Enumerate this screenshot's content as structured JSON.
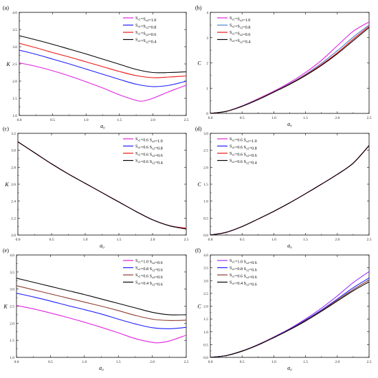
{
  "chart_data": [
    {
      "panel": "(a)",
      "type": "line",
      "xlabel": "a₀",
      "ylabel": "K",
      "xlim": [
        0,
        2.5
      ],
      "ylim": [
        1.0,
        4.0
      ],
      "xticks": [
        "0.0",
        "0.5",
        "1.0",
        "1.5",
        "2.0",
        "2.5"
      ],
      "yticks": [
        "1.0",
        "1.5",
        "2.0",
        "2.5",
        "3.0",
        "3.5",
        "4.0"
      ],
      "legend": "top-right",
      "series": [
        {
          "name": "Sₓ₁=Sₓ₂=1.0",
          "color": "#e020e0",
          "x": [
            0,
            0.25,
            0.5,
            0.75,
            1.0,
            1.25,
            1.5,
            1.75,
            1.85,
            2.0,
            2.25,
            2.5
          ],
          "y": [
            2.53,
            2.43,
            2.3,
            2.15,
            1.98,
            1.8,
            1.6,
            1.44,
            1.42,
            1.5,
            1.7,
            1.88
          ]
        },
        {
          "name": "Sₓ₁=Sₓ₂=0.8",
          "color": "#1a1aff",
          "x": [
            0,
            0.25,
            0.5,
            0.75,
            1.0,
            1.25,
            1.5,
            1.75,
            2.0,
            2.25,
            2.5
          ],
          "y": [
            2.9,
            2.78,
            2.64,
            2.5,
            2.35,
            2.2,
            2.05,
            1.91,
            1.84,
            1.88,
            2.0
          ]
        },
        {
          "name": "Sₓ₁=Sₓ₂=0.6",
          "color": "#ee1111",
          "x": [
            0,
            0.25,
            0.5,
            0.75,
            1.0,
            1.25,
            1.5,
            1.75,
            2.0,
            2.25,
            2.5
          ],
          "y": [
            3.1,
            2.97,
            2.83,
            2.7,
            2.56,
            2.42,
            2.28,
            2.16,
            2.1,
            2.12,
            2.15
          ]
        },
        {
          "name": "Sₓ₁=Sₓ₂=0.4",
          "color": "#000000",
          "x": [
            0,
            0.25,
            0.5,
            0.75,
            1.0,
            1.25,
            1.5,
            1.75,
            2.0,
            2.25,
            2.5
          ],
          "y": [
            3.32,
            3.2,
            3.07,
            2.93,
            2.79,
            2.64,
            2.49,
            2.34,
            2.25,
            2.25,
            2.27
          ]
        }
      ]
    },
    {
      "panel": "(b)",
      "type": "line",
      "xlabel": "a₀",
      "ylabel": "C",
      "xlim": [
        0,
        2.5
      ],
      "ylim": [
        0,
        4
      ],
      "xticks": [
        "0.0",
        "0.5",
        "1.0",
        "1.5",
        "2.0",
        "2.5"
      ],
      "yticks": [
        "0",
        "1",
        "2",
        "3",
        "4"
      ],
      "legend": "top-left",
      "series": [
        {
          "name": "Sₓ₁=Sₓ₂=1.0",
          "color": "#e020e0",
          "x": [
            0,
            0.25,
            0.5,
            0.75,
            1.0,
            1.25,
            1.5,
            1.75,
            2.0,
            2.25,
            2.5
          ],
          "y": [
            0,
            0.08,
            0.3,
            0.58,
            0.88,
            1.22,
            1.62,
            2.1,
            2.68,
            3.25,
            3.62
          ]
        },
        {
          "name": "Sₓ₁=Sₓ₂=0.8",
          "color": "#4a7fd0",
          "x": [
            0,
            0.25,
            0.5,
            0.75,
            1.0,
            1.25,
            1.5,
            1.75,
            2.0,
            2.25,
            2.5
          ],
          "y": [
            0,
            0.08,
            0.29,
            0.56,
            0.86,
            1.18,
            1.55,
            1.98,
            2.48,
            3.02,
            3.5
          ]
        },
        {
          "name": "Sₓ₁=Sₓ₂=0.6",
          "color": "#ee1111",
          "x": [
            0,
            0.25,
            0.5,
            0.75,
            1.0,
            1.25,
            1.5,
            1.75,
            2.0,
            2.25,
            2.5
          ],
          "y": [
            0,
            0.08,
            0.28,
            0.55,
            0.85,
            1.16,
            1.52,
            1.93,
            2.4,
            2.94,
            3.45
          ]
        },
        {
          "name": "Sₓ₁=Sₓ₂=0.4",
          "color": "#000000",
          "x": [
            0,
            0.25,
            0.5,
            0.75,
            1.0,
            1.25,
            1.5,
            1.75,
            2.0,
            2.25,
            2.5
          ],
          "y": [
            0,
            0.08,
            0.28,
            0.54,
            0.84,
            1.15,
            1.5,
            1.9,
            2.36,
            2.88,
            3.4
          ]
        }
      ]
    },
    {
      "panel": "(c)",
      "type": "line",
      "xlabel": "a₀",
      "ylabel": "K",
      "xlim": [
        0,
        2.5
      ],
      "ylim": [
        2.0,
        3.2
      ],
      "xticks": [
        "0.0",
        "0.5",
        "1.0",
        "1.5",
        "2.0",
        "2.5"
      ],
      "yticks": [
        "2.0",
        "2.2",
        "2.4",
        "2.6",
        "2.8",
        "3.0",
        "3.2"
      ],
      "legend": "top-right",
      "series": [
        {
          "name": "Sₓ₁=0.6 Sₓ₂=1.0",
          "color": "#e020e0",
          "x": [
            0,
            0.25,
            0.5,
            0.75,
            1.0,
            1.25,
            1.5,
            1.75,
            2.0,
            2.25,
            2.5
          ],
          "y": [
            3.1,
            2.97,
            2.84,
            2.72,
            2.61,
            2.5,
            2.39,
            2.28,
            2.18,
            2.11,
            2.08
          ]
        },
        {
          "name": "Sₓ₁=0.6 Sₓ₂=0.8",
          "color": "#1a1aff",
          "x": [
            0,
            0.25,
            0.5,
            0.75,
            1.0,
            1.25,
            1.5,
            1.75,
            2.0,
            2.25,
            2.5
          ],
          "y": [
            3.1,
            2.97,
            2.84,
            2.72,
            2.61,
            2.5,
            2.39,
            2.28,
            2.18,
            2.11,
            2.08
          ]
        },
        {
          "name": "Sₓ₁=0.6 Sₓ₂=0.6",
          "color": "#ee1111",
          "x": [
            0,
            0.25,
            0.5,
            0.75,
            1.0,
            1.25,
            1.5,
            1.75,
            2.0,
            2.25,
            2.5
          ],
          "y": [
            3.1,
            2.97,
            2.84,
            2.72,
            2.61,
            2.5,
            2.39,
            2.28,
            2.18,
            2.11,
            2.08
          ]
        },
        {
          "name": "Sₓ₁=0.6 Sₓ₂=0.4",
          "color": "#000000",
          "x": [
            0,
            0.25,
            0.5,
            0.75,
            1.0,
            1.25,
            1.5,
            1.75,
            2.0,
            2.25,
            2.5
          ],
          "y": [
            3.1,
            2.97,
            2.84,
            2.72,
            2.61,
            2.5,
            2.39,
            2.28,
            2.18,
            2.11,
            2.07
          ]
        }
      ]
    },
    {
      "panel": "(d)",
      "type": "line",
      "xlabel": "a₀",
      "ylabel": "C",
      "xlim": [
        0,
        2.5
      ],
      "ylim": [
        0,
        3
      ],
      "xticks": [
        "0.0",
        "0.5",
        "1.0",
        "1.5",
        "2.0",
        "2.5"
      ],
      "yticks": [
        "0.0",
        "0.5",
        "1.0",
        "1.5",
        "2.0",
        "2.5",
        "3.0"
      ],
      "legend": "top-left",
      "series": [
        {
          "name": "Sₓ₁=0.6 Sₓ₂=1.0",
          "color": "#e020e0",
          "x": [
            0,
            0.25,
            0.5,
            0.75,
            1.0,
            1.25,
            1.5,
            1.75,
            2.0,
            2.25,
            2.5
          ],
          "y": [
            0,
            0.08,
            0.25,
            0.47,
            0.7,
            0.95,
            1.22,
            1.5,
            1.79,
            2.12,
            2.64
          ]
        },
        {
          "name": "Sₓ₁=0.6 Sₓ₂=0.8",
          "color": "#1a1aff",
          "x": [
            0,
            0.25,
            0.5,
            0.75,
            1.0,
            1.25,
            1.5,
            1.75,
            2.0,
            2.25,
            2.5
          ],
          "y": [
            0,
            0.08,
            0.25,
            0.47,
            0.7,
            0.95,
            1.22,
            1.5,
            1.79,
            2.12,
            2.64
          ]
        },
        {
          "name": "Sₓ₁=0.6 Sₓ₂=0.6",
          "color": "#ee1111",
          "x": [
            0,
            0.25,
            0.5,
            0.75,
            1.0,
            1.25,
            1.5,
            1.75,
            2.0,
            2.25,
            2.5
          ],
          "y": [
            0,
            0.08,
            0.25,
            0.47,
            0.7,
            0.95,
            1.22,
            1.5,
            1.79,
            2.12,
            2.64
          ]
        },
        {
          "name": "Sₓ₁=0.6 Sₓ₂=0.4",
          "color": "#000000",
          "x": [
            0,
            0.25,
            0.5,
            0.75,
            1.0,
            1.25,
            1.5,
            1.75,
            2.0,
            2.25,
            2.5
          ],
          "y": [
            0,
            0.08,
            0.25,
            0.47,
            0.7,
            0.95,
            1.22,
            1.5,
            1.79,
            2.12,
            2.64
          ]
        }
      ]
    },
    {
      "panel": "(e)",
      "type": "line",
      "xlabel": "a₀",
      "ylabel": "K",
      "xlim": [
        0,
        2.5
      ],
      "ylim": [
        1.0,
        4.0
      ],
      "xticks": [
        "0.0",
        "0.5",
        "1.0",
        "1.5",
        "2.0",
        "2.5"
      ],
      "yticks": [
        "1.0",
        "1.5",
        "2.0",
        "2.5",
        "3.0",
        "3.5",
        "4.0"
      ],
      "legend": "top-right",
      "series": [
        {
          "name": "Sₓ₁=1.0 Sₓ₂=0.6",
          "color": "#e020e0",
          "x": [
            0,
            0.25,
            0.5,
            0.75,
            1.0,
            1.25,
            1.5,
            1.75,
            2.0,
            2.1,
            2.25,
            2.5
          ],
          "y": [
            2.52,
            2.42,
            2.3,
            2.17,
            2.03,
            1.88,
            1.72,
            1.55,
            1.44,
            1.43,
            1.48,
            1.65
          ]
        },
        {
          "name": "Sₓ₁=0.8 Sₓ₂=0.6",
          "color": "#1a1aff",
          "x": [
            0,
            0.25,
            0.5,
            0.75,
            1.0,
            1.25,
            1.5,
            1.75,
            2.0,
            2.25,
            2.5
          ],
          "y": [
            2.88,
            2.77,
            2.65,
            2.52,
            2.4,
            2.27,
            2.12,
            1.98,
            1.87,
            1.84,
            1.88
          ]
        },
        {
          "name": "Sₓ₁=0.6 Sₓ₂=0.6",
          "color": "#8b3a2a",
          "x": [
            0,
            0.25,
            0.5,
            0.75,
            1.0,
            1.25,
            1.5,
            1.75,
            2.0,
            2.25,
            2.5
          ],
          "y": [
            3.1,
            2.98,
            2.86,
            2.74,
            2.62,
            2.5,
            2.37,
            2.23,
            2.12,
            2.08,
            2.09
          ]
        },
        {
          "name": "Sₓ₁=0.4 Sₓ₂=0.6",
          "color": "#000000",
          "x": [
            0,
            0.25,
            0.5,
            0.75,
            1.0,
            1.25,
            1.5,
            1.75,
            2.0,
            2.25,
            2.5
          ],
          "y": [
            3.32,
            3.2,
            3.08,
            2.96,
            2.84,
            2.71,
            2.58,
            2.45,
            2.32,
            2.25,
            2.25
          ]
        }
      ]
    },
    {
      "panel": "(f)",
      "type": "line",
      "xlabel": "a₀",
      "ylabel": "C",
      "xlim": [
        0,
        2.5
      ],
      "ylim": [
        0,
        4
      ],
      "xticks": [
        "0.0",
        "0.5",
        "1.0",
        "1.5",
        "2.0",
        "2.5"
      ],
      "yticks": [
        "0.0",
        "0.5",
        "1.0",
        "1.5",
        "2.0",
        "2.5",
        "3.0",
        "3.5",
        "4.0"
      ],
      "legend": "top-left",
      "series": [
        {
          "name": "Sₓ₁=1.0 Sₓ₂=0.6",
          "color": "#9b30ff",
          "x": [
            0,
            0.25,
            0.5,
            0.75,
            1.0,
            1.25,
            1.5,
            1.75,
            2.0,
            2.25,
            2.5
          ],
          "y": [
            0,
            0.07,
            0.25,
            0.5,
            0.8,
            1.12,
            1.5,
            1.92,
            2.4,
            2.92,
            3.35
          ]
        },
        {
          "name": "Sₓ₁=0.8 Sₓ₂=0.6",
          "color": "#1a1aff",
          "x": [
            0,
            0.25,
            0.5,
            0.75,
            1.0,
            1.25,
            1.5,
            1.75,
            2.0,
            2.25,
            2.5
          ],
          "y": [
            0,
            0.07,
            0.25,
            0.49,
            0.78,
            1.1,
            1.46,
            1.85,
            2.28,
            2.72,
            3.1
          ]
        },
        {
          "name": "Sₓ₁=0.6 Sₓ₂=0.6",
          "color": "#8b3a2a",
          "x": [
            0,
            0.25,
            0.5,
            0.75,
            1.0,
            1.25,
            1.5,
            1.75,
            2.0,
            2.25,
            2.5
          ],
          "y": [
            0,
            0.07,
            0.25,
            0.49,
            0.78,
            1.09,
            1.44,
            1.82,
            2.24,
            2.65,
            3.02
          ]
        },
        {
          "name": "Sₓ₁=0.4 Sₓ₂=0.6",
          "color": "#000000",
          "x": [
            0,
            0.25,
            0.5,
            0.75,
            1.0,
            1.25,
            1.5,
            1.75,
            2.0,
            2.25,
            2.5
          ],
          "y": [
            0,
            0.07,
            0.24,
            0.48,
            0.77,
            1.08,
            1.42,
            1.8,
            2.2,
            2.6,
            2.95
          ]
        }
      ]
    }
  ]
}
